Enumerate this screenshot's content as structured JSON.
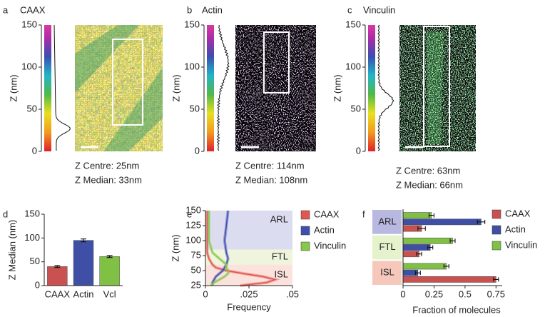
{
  "image_panels": [
    {
      "label": "a",
      "name": "CAAX",
      "y_label": "Z (nm)",
      "ylim": [
        0,
        150
      ],
      "yticks": [
        0,
        50,
        100,
        150
      ],
      "z_centre": "Z Centre: 25nm",
      "z_median": "Z Median: 33nm"
    },
    {
      "label": "b",
      "name": "Actin",
      "y_label": "Z (nm)",
      "ylim": [
        0,
        150
      ],
      "yticks": [
        0,
        50,
        100,
        150
      ],
      "z_centre": "Z Centre: 114nm",
      "z_median": "Z Median: 108nm"
    },
    {
      "label": "c",
      "name": "Vinculin",
      "y_label": "Z (nm)",
      "ylim": [
        0,
        150
      ],
      "yticks": [
        0,
        50,
        100,
        150
      ],
      "z_centre": "Z Centre: 63nm",
      "z_median": "Z Median: 66nm"
    }
  ],
  "chart_data": [
    {
      "type": "bar",
      "label": "d",
      "y_label": "Z Median (nm)",
      "categories": [
        "CAAX",
        "Actin",
        "Vcl"
      ],
      "values": [
        40,
        95,
        61
      ],
      "errors": [
        2,
        3,
        2
      ],
      "colors": [
        "#c9514f",
        "#3f4fa6",
        "#80c044"
      ],
      "ylim": [
        0,
        150
      ],
      "yticks": [
        0,
        50,
        100,
        150
      ]
    },
    {
      "type": "line",
      "label": "e",
      "orientation": "horizontal",
      "x_label": "Frequency",
      "y_label": "Z (nm)",
      "y": [
        25,
        30,
        35,
        40,
        45,
        50,
        55,
        60,
        70,
        80,
        100,
        125,
        150
      ],
      "series": [
        {
          "name": "CAAX",
          "color": "#e0574f",
          "values": [
            0.02,
            0.035,
            0.04,
            0.033,
            0.022,
            0.012,
            0.006,
            0.004,
            0.002,
            0.001,
            0.001,
            0.001,
            0.001
          ]
        },
        {
          "name": "Actin",
          "color": "#3f4fb0",
          "values": [
            0.004,
            0.004,
            0.005,
            0.006,
            0.008,
            0.01,
            0.011,
            0.012,
            0.013,
            0.012,
            0.011,
            0.012,
            0.013
          ]
        },
        {
          "name": "Vinculin",
          "color": "#86c94a",
          "values": [
            0.003,
            0.005,
            0.008,
            0.011,
            0.013,
            0.013,
            0.012,
            0.012,
            0.008,
            0.004,
            0.002,
            0.002,
            0.002
          ]
        }
      ],
      "zones": [
        {
          "name": "ARL",
          "range": [
            85,
            150
          ],
          "color": "#dcdcf0"
        },
        {
          "name": "FTL",
          "range": [
            60,
            85
          ],
          "color": "#eef5dc"
        },
        {
          "name": "ISL",
          "range": [
            25,
            60
          ],
          "color": "#fbe2dc"
        }
      ],
      "xlim": [
        0,
        0.05
      ],
      "xticks": [
        0,
        {
          "value": 0.025,
          "label": ".025"
        },
        {
          "value": 0.05,
          "label": ".05"
        }
      ],
      "ylim": [
        25,
        150
      ],
      "yticks": [
        25,
        50,
        75,
        100,
        125,
        150
      ],
      "legend": "right"
    },
    {
      "type": "hbar",
      "label": "f",
      "x_label": "Fraction of molecules",
      "categories": [
        "ARL",
        "FTL",
        "ISL"
      ],
      "category_colors": [
        "#b8b8e0",
        "#e6f2cc",
        "#f6c8bc"
      ],
      "series": [
        {
          "name": "CAAX",
          "color": "#c9514f",
          "values": [
            0.15,
            0.13,
            0.75
          ],
          "errors": [
            0.03,
            0.02,
            0.02
          ]
        },
        {
          "name": "Actin",
          "color": "#3f4fa6",
          "values": [
            0.63,
            0.22,
            0.12
          ],
          "errors": [
            0.03,
            0.02,
            0.02
          ]
        },
        {
          "name": "Vinculin",
          "color": "#80c044",
          "values": [
            0.23,
            0.4,
            0.35
          ],
          "errors": [
            0.02,
            0.02,
            0.02
          ]
        }
      ],
      "xlim": [
        0,
        0.8
      ],
      "xticks": [
        0,
        0.25,
        0.5,
        0.75
      ],
      "legend": "right"
    }
  ]
}
